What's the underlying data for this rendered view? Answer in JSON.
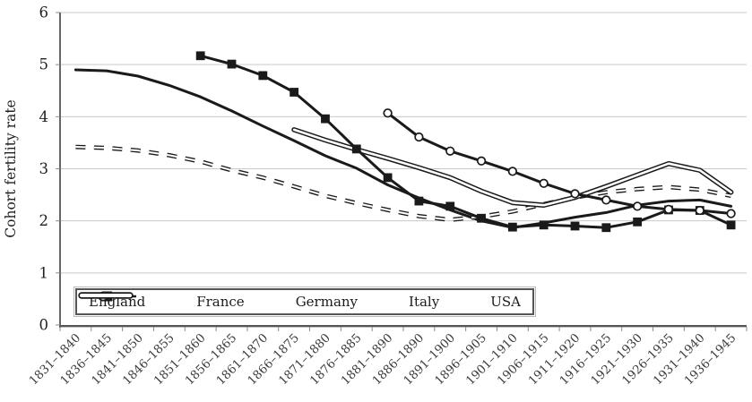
{
  "chart_data": {
    "type": "line",
    "title": "",
    "xlabel": "",
    "ylabel": "Cohort fertility rate",
    "ylim": [
      0,
      6
    ],
    "y_ticks": [
      0,
      1,
      2,
      3,
      4,
      5,
      6
    ],
    "grid": "horizontal",
    "legend_position": "inside-bottom-left",
    "line_color": "#1a1a1a",
    "gridline_color": "#c9c9c9",
    "categories": [
      "1831–1840",
      "1836–1845",
      "1841–1850",
      "1846–1855",
      "1851–1860",
      "1856–1865",
      "1861–1870",
      "1866–1875",
      "1871–1880",
      "1876–1885",
      "1881–1890",
      "1886–1890",
      "1891–1900",
      "1896–1905",
      "1901–1910",
      "1906–1915",
      "1911–1920",
      "1916–1925",
      "1921–1930",
      "1926–1935",
      "1931–1940",
      "1936–1945"
    ],
    "series": [
      {
        "name": "England",
        "line": "solid",
        "marker": "none",
        "values": [
          4.9,
          4.88,
          4.78,
          4.6,
          4.38,
          4.11,
          3.82,
          3.54,
          3.25,
          3.01,
          2.69,
          2.44,
          2.21,
          2.0,
          1.87,
          1.96,
          2.07,
          2.16,
          2.3,
          2.38,
          2.4,
          2.28
        ]
      },
      {
        "name": "France",
        "line": "outlined-dash",
        "marker": "none",
        "values": [
          3.42,
          3.4,
          3.35,
          3.26,
          3.14,
          2.97,
          2.83,
          2.66,
          2.48,
          2.34,
          2.21,
          2.09,
          2.02,
          2.08,
          2.18,
          2.32,
          2.45,
          2.55,
          2.61,
          2.65,
          2.6,
          2.48
        ]
      },
      {
        "name": "Germany",
        "line": "solid",
        "marker": "filled-square",
        "values": [
          null,
          null,
          null,
          null,
          5.17,
          5.01,
          4.79,
          4.47,
          3.96,
          3.38,
          2.83,
          2.38,
          2.28,
          2.05,
          1.88,
          1.92,
          1.9,
          1.87,
          1.98,
          2.21,
          2.2,
          1.92
        ]
      },
      {
        "name": "Italy",
        "line": "solid",
        "marker": "open-circle",
        "values": [
          null,
          null,
          null,
          null,
          null,
          null,
          null,
          null,
          null,
          null,
          4.07,
          3.61,
          3.34,
          3.15,
          2.95,
          2.72,
          2.52,
          2.4,
          2.28,
          2.22,
          2.2,
          2.14
        ]
      },
      {
        "name": "USA",
        "line": "double",
        "marker": "none",
        "values": [
          null,
          null,
          null,
          null,
          null,
          null,
          null,
          3.75,
          3.55,
          3.37,
          3.2,
          3.02,
          2.83,
          2.57,
          2.35,
          2.3,
          2.45,
          2.66,
          2.88,
          3.1,
          2.97,
          2.55
        ]
      }
    ]
  }
}
